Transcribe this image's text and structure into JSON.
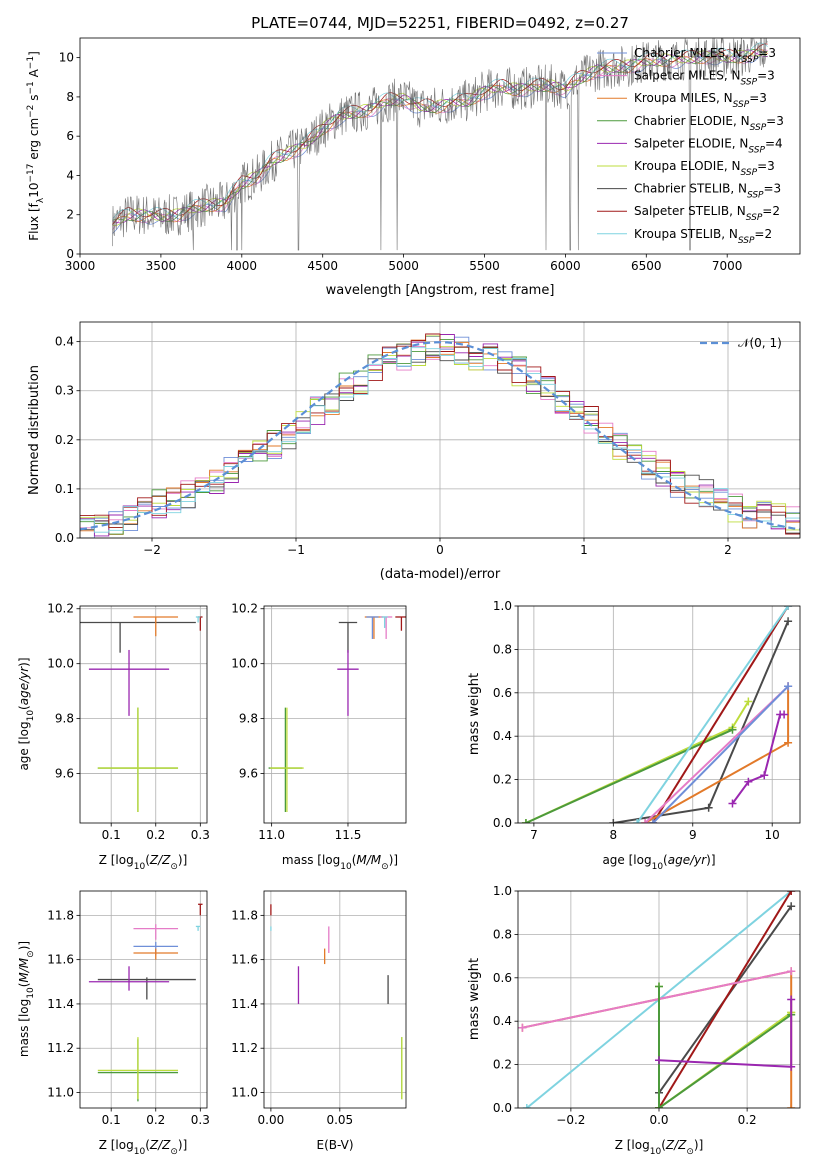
{
  "figure_title": "PLATE=0744, MJD=52251, FIBERID=0492, z=0.27",
  "colors": {
    "Chabrier MILES": "#6f8fd8",
    "Salpeter MILES": "#e57cc7",
    "Kroupa MILES": "#e27a2a",
    "Chabrier ELODIE": "#4c9a3c",
    "Salpeter ELODIE": "#9a27b0",
    "Kroupa ELODIE": "#bddc3c",
    "Chabrier STELIB": "#4a4a4a",
    "Salpeter STELIB": "#a01818",
    "Kroupa STELIB": "#7fd3e0"
  },
  "legend_models": [
    {
      "label": "Chabrier MILES, N",
      "sub": "SSP",
      "tail": "=3",
      "color_key": "Chabrier MILES"
    },
    {
      "label": "Salpeter MILES, N",
      "sub": "SSP",
      "tail": "=3",
      "color_key": "Salpeter MILES"
    },
    {
      "label": "Kroupa MILES, N",
      "sub": "SSP",
      "tail": "=3",
      "color_key": "Kroupa MILES"
    },
    {
      "label": "Chabrier ELODIE, N",
      "sub": "SSP",
      "tail": "=3",
      "color_key": "Chabrier ELODIE"
    },
    {
      "label": "Salpeter ELODIE, N",
      "sub": "SSP",
      "tail": "=4",
      "color_key": "Salpeter ELODIE"
    },
    {
      "label": "Kroupa ELODIE, N",
      "sub": "SSP",
      "tail": "=3",
      "color_key": "Kroupa ELODIE"
    },
    {
      "label": "Chabrier STELIB, N",
      "sub": "SSP",
      "tail": "=3",
      "color_key": "Chabrier STELIB"
    },
    {
      "label": "Salpeter STELIB, N",
      "sub": "SSP",
      "tail": "=2",
      "color_key": "Salpeter STELIB"
    },
    {
      "label": "Kroupa STELIB, N",
      "sub": "SSP",
      "tail": "=2",
      "color_key": "Kroupa STELIB"
    }
  ],
  "chart_data": [
    {
      "id": "spectrum",
      "type": "line",
      "xlabel": "wavelength [Angstrom, rest frame]",
      "ylabel_main": "Flux [f",
      "ylabel_sub": "λ",
      "ylabel_rest": "10",
      "ylabel_tail": " erg cm",
      "ylabel_tail2": " s",
      "ylabel_tail3": " A",
      "ylabel_sup1": "−17",
      "ylabel_sup2": "−2",
      "ylabel_sup3": "−1",
      "ylabel_sup4": "−1",
      "xlim": [
        3000,
        7450
      ],
      "ylim": [
        0,
        11
      ],
      "xticks": [
        3000,
        3500,
        4000,
        4500,
        5000,
        5500,
        6000,
        6500,
        7000
      ],
      "yticks": [
        0,
        2,
        4,
        6,
        8,
        10
      ],
      "grid": false,
      "legend_position": "upper right",
      "continuum": {
        "wavelength": [
          3200,
          3300,
          3400,
          3500,
          3600,
          3700,
          3800,
          3900,
          4000,
          4100,
          4200,
          4300,
          4400,
          4500,
          4600,
          4700,
          4800,
          4900,
          5000,
          5100,
          5200,
          5300,
          5400,
          5500,
          5600,
          5700,
          5800,
          5900,
          6000,
          6100,
          6200,
          6300,
          6400,
          6500,
          6600,
          6700,
          6800,
          6900,
          7000,
          7100,
          7200,
          7250
        ],
        "flux": [
          1.5,
          2.0,
          2.0,
          1.9,
          2.0,
          2.3,
          2.5,
          2.6,
          3.6,
          4.0,
          4.8,
          5.2,
          5.6,
          6.4,
          7.0,
          7.2,
          7.4,
          7.8,
          7.9,
          7.5,
          7.5,
          7.7,
          7.8,
          8.3,
          8.5,
          8.4,
          8.5,
          8.6,
          8.4,
          9.0,
          9.4,
          9.5,
          9.6,
          9.8,
          9.9,
          9.9,
          10.0,
          10.1,
          10.0,
          10.1,
          10.3,
          10.3
        ]
      }
    },
    {
      "id": "residuals",
      "type": "step",
      "xlabel": "(data-model)/error",
      "ylabel": "Normed distribution",
      "xlim": [
        -2.5,
        2.5
      ],
      "ylim": [
        0,
        0.44
      ],
      "xticks": [
        -2,
        -1,
        0,
        1,
        2
      ],
      "yticks": [
        0.0,
        0.1,
        0.2,
        0.3,
        0.4
      ],
      "grid": true,
      "legend_position": "upper right",
      "reference_label": "𝒩(0, 1)",
      "reference_color": "#5b8fd6",
      "bin_centers": [
        -2.45,
        -2.35,
        -2.25,
        -2.15,
        -2.05,
        -1.95,
        -1.85,
        -1.75,
        -1.65,
        -1.55,
        -1.45,
        -1.35,
        -1.25,
        -1.15,
        -1.05,
        -0.95,
        -0.85,
        -0.75,
        -0.65,
        -0.55,
        -0.45,
        -0.35,
        -0.25,
        -0.15,
        -0.05,
        0.05,
        0.15,
        0.25,
        0.35,
        0.45,
        0.55,
        0.65,
        0.75,
        0.85,
        0.95,
        1.05,
        1.15,
        1.25,
        1.35,
        1.45,
        1.55,
        1.65,
        1.75,
        1.85,
        1.95,
        2.05,
        2.15,
        2.25,
        2.35,
        2.45
      ],
      "base_density": [
        0.02,
        0.03,
        0.035,
        0.045,
        0.055,
        0.07,
        0.08,
        0.09,
        0.11,
        0.12,
        0.135,
        0.15,
        0.17,
        0.19,
        0.21,
        0.23,
        0.26,
        0.28,
        0.31,
        0.32,
        0.35,
        0.36,
        0.37,
        0.38,
        0.39,
        0.39,
        0.38,
        0.37,
        0.37,
        0.36,
        0.34,
        0.32,
        0.3,
        0.28,
        0.26,
        0.24,
        0.21,
        0.19,
        0.16,
        0.15,
        0.13,
        0.11,
        0.1,
        0.09,
        0.08,
        0.06,
        0.05,
        0.045,
        0.04,
        0.035
      ]
    },
    {
      "id": "age_vs_Z",
      "type": "errorbar",
      "xlabel": "Z [log",
      "xlabel_sub": "10",
      "xlabel_tail": "(Z/Z",
      "xlabel_sym": "⊙",
      "xlabel_end": ")]",
      "ylabel": "age  [log",
      "ylabel_sub": "10",
      "ylabel_tail": "(age/yr)]",
      "xlim": [
        0.03,
        0.315
      ],
      "ylim": [
        9.42,
        10.21
      ],
      "xticks": [
        0.1,
        0.2,
        0.3
      ],
      "yticks": [
        9.6,
        9.8,
        10.0,
        10.2
      ],
      "grid": true,
      "points": [
        {
          "model": "Chabrier STELIB",
          "x": 0.12,
          "xerr": 0.17,
          "y": 10.15,
          "yerr_lo": 0.11,
          "yerr_hi": 0.0
        },
        {
          "model": "Kroupa MILES",
          "x": 0.2,
          "xerr": 0.05,
          "y": 10.17,
          "yerr_lo": 0.07,
          "yerr_hi": 0.0
        },
        {
          "model": "Salpeter STELIB",
          "x": 0.3,
          "xerr": 0.005,
          "y": 10.17,
          "yerr_lo": 0.05,
          "yerr_hi": 0.0
        },
        {
          "model": "Kroupa STELIB",
          "x": 0.295,
          "xerr": 0.005,
          "y": 10.17,
          "yerr_lo": 0.02,
          "yerr_hi": 0.0
        },
        {
          "model": "Salpeter ELODIE",
          "x": 0.14,
          "xerr": 0.09,
          "y": 9.98,
          "yerr_lo": 0.17,
          "yerr_hi": 0.07
        },
        {
          "model": "Chabrier ELODIE",
          "x": 0.16,
          "xerr": 0.09,
          "y": 9.62,
          "yerr_lo": 0.16,
          "yerr_hi": 0.22
        },
        {
          "model": "Kroupa ELODIE",
          "x": 0.16,
          "xerr": 0.09,
          "y": 9.62,
          "yerr_lo": 0.16,
          "yerr_hi": 0.22
        }
      ]
    },
    {
      "id": "age_vs_mass",
      "type": "errorbar",
      "xlabel": "mass [log",
      "xlabel_sub": "10",
      "xlabel_tail": "(M/M",
      "xlabel_sym": "⊙",
      "xlabel_end": ")]",
      "xlim": [
        10.95,
        11.88
      ],
      "ylim": [
        9.42,
        10.21
      ],
      "xticks": [
        11.0,
        11.5
      ],
      "yticks": [
        9.6,
        9.8,
        10.0,
        10.2
      ],
      "grid": true,
      "points": [
        {
          "model": "Chabrier STELIB",
          "x": 11.5,
          "xerr": 0.06,
          "y": 10.15,
          "yerr_lo": 0.11,
          "yerr_hi": 0.0
        },
        {
          "model": "Kroupa MILES",
          "x": 11.67,
          "xerr": 0.06,
          "y": 10.17,
          "yerr_lo": 0.08,
          "yerr_hi": 0.0
        },
        {
          "model": "Chabrier MILES",
          "x": 11.66,
          "xerr": 0.04,
          "y": 10.17,
          "yerr_lo": 0.08,
          "yerr_hi": 0.0
        },
        {
          "model": "Salpeter MILES",
          "x": 11.75,
          "xerr": 0.04,
          "y": 10.17,
          "yerr_lo": 0.08,
          "yerr_hi": 0.0
        },
        {
          "model": "Salpeter STELIB",
          "x": 11.85,
          "xerr": 0.04,
          "y": 10.17,
          "yerr_lo": 0.05,
          "yerr_hi": 0.0
        },
        {
          "model": "Kroupa STELIB",
          "x": 11.74,
          "xerr": 0.02,
          "y": 10.17,
          "yerr_lo": 0.04,
          "yerr_hi": 0.0
        },
        {
          "model": "Salpeter ELODIE",
          "x": 11.5,
          "xerr": 0.07,
          "y": 9.98,
          "yerr_lo": 0.17,
          "yerr_hi": 0.07
        },
        {
          "model": "Chabrier ELODIE",
          "x": 11.09,
          "xerr": 0.11,
          "y": 9.62,
          "yerr_lo": 0.16,
          "yerr_hi": 0.22
        },
        {
          "model": "Kroupa ELODIE",
          "x": 11.1,
          "xerr": 0.11,
          "y": 9.62,
          "yerr_lo": 0.16,
          "yerr_hi": 0.22
        }
      ]
    },
    {
      "id": "massweight_vs_age",
      "type": "line",
      "xlabel": "age  [log",
      "xlabel_sub": "10",
      "xlabel_tail": "(age/yr)]",
      "ylabel": "mass weight",
      "xlim": [
        6.8,
        10.35
      ],
      "ylim": [
        0,
        1
      ],
      "xticks": [
        7,
        8,
        9,
        10
      ],
      "yticks": [
        0.0,
        0.2,
        0.4,
        0.6,
        0.8,
        1.0
      ],
      "grid": true,
      "series": [
        {
          "model": "Kroupa ELODIE",
          "x": [
            6.9,
            9.5,
            9.7
          ],
          "y": [
            0.0,
            0.44,
            0.56
          ]
        },
        {
          "model": "Chabrier ELODIE",
          "x": [
            6.9,
            9.5
          ],
          "y": [
            0.0,
            0.43
          ]
        },
        {
          "model": "Chabrier STELIB",
          "x": [
            8.0,
            9.2,
            10.2
          ],
          "y": [
            0.0,
            0.07,
            0.93
          ]
        },
        {
          "model": "Salpeter STELIB",
          "x": [
            8.5,
            10.2
          ],
          "y": [
            0.0,
            1.0
          ]
        },
        {
          "model": "Kroupa STELIB",
          "x": [
            8.3,
            10.2
          ],
          "y": [
            0.0,
            1.0
          ]
        },
        {
          "model": "Kroupa MILES",
          "x": [
            8.4,
            10.2,
            10.2
          ],
          "y": [
            0.0,
            0.37,
            0.63
          ]
        },
        {
          "model": "Salpeter MILES",
          "x": [
            8.4,
            10.2
          ],
          "y": [
            0.0,
            0.63
          ]
        },
        {
          "model": "Chabrier MILES",
          "x": [
            8.5,
            10.2
          ],
          "y": [
            0.0,
            0.63
          ]
        },
        {
          "model": "Salpeter ELODIE",
          "x": [
            9.5,
            9.7,
            9.9,
            10.1,
            10.15
          ],
          "y": [
            0.09,
            0.19,
            0.22,
            0.5,
            0.5
          ]
        }
      ]
    },
    {
      "id": "mass_vs_Z",
      "type": "errorbar",
      "xlabel": "Z [log",
      "xlabel_sub": "10",
      "xlabel_tail": "(Z/Z",
      "xlabel_sym": "⊙",
      "xlabel_end": ")]",
      "ylabel": "mass [log",
      "ylabel_sub": "10",
      "ylabel_tail": "(M/M",
      "ylabel_sym": "⊙",
      "ylabel_end": ")]",
      "xlim": [
        0.03,
        0.315
      ],
      "ylim": [
        10.93,
        11.91
      ],
      "xticks": [
        0.1,
        0.2,
        0.3
      ],
      "yticks": [
        11.0,
        11.2,
        11.4,
        11.6,
        11.8
      ],
      "grid": true,
      "points": [
        {
          "model": "Salpeter STELIB",
          "x": 0.3,
          "xerr": 0.005,
          "y": 11.85,
          "yerr_lo": 0.05,
          "yerr_hi": 0.0
        },
        {
          "model": "Kroupa STELIB",
          "x": 0.295,
          "xerr": 0.005,
          "y": 11.75,
          "yerr_lo": 0.02,
          "yerr_hi": 0.0
        },
        {
          "model": "Salpeter MILES",
          "x": 0.2,
          "xerr": 0.05,
          "y": 11.74,
          "yerr_lo": 0.05,
          "yerr_hi": 0.02
        },
        {
          "model": "Chabrier MILES",
          "x": 0.2,
          "xerr": 0.05,
          "y": 11.66,
          "yerr_lo": 0.04,
          "yerr_hi": 0.02
        },
        {
          "model": "Kroupa MILES",
          "x": 0.2,
          "xerr": 0.05,
          "y": 11.63,
          "yerr_lo": 0.03,
          "yerr_hi": 0.02
        },
        {
          "model": "Chabrier STELIB",
          "x": 0.18,
          "xerr": 0.11,
          "y": 11.51,
          "yerr_lo": 0.09,
          "yerr_hi": 0.01
        },
        {
          "model": "Salpeter ELODIE",
          "x": 0.14,
          "xerr": 0.09,
          "y": 11.5,
          "yerr_lo": 0.04,
          "yerr_hi": 0.07
        },
        {
          "model": "Chabrier ELODIE",
          "x": 0.16,
          "xerr": 0.09,
          "y": 11.09,
          "yerr_lo": 0.13,
          "yerr_hi": 0.15
        },
        {
          "model": "Kroupa ELODIE",
          "x": 0.16,
          "xerr": 0.09,
          "y": 11.1,
          "yerr_lo": 0.13,
          "yerr_hi": 0.15
        }
      ]
    },
    {
      "id": "mass_vs_EBV",
      "type": "errorbar",
      "xlabel": "E(B-V)",
      "xlim": [
        -0.005,
        0.098
      ],
      "ylim": [
        10.93,
        11.91
      ],
      "xticks": [
        0.0,
        0.05
      ],
      "xtick_labels": [
        "0.00",
        "0.05"
      ],
      "yticks": [
        11.0,
        11.2,
        11.4,
        11.6,
        11.8
      ],
      "grid": true,
      "points": [
        {
          "model": "Salpeter STELIB",
          "x": 0.0,
          "y": 11.85,
          "yerr_lo": 0.05,
          "yerr_hi": 0.0
        },
        {
          "model": "Kroupa STELIB",
          "x": 0.0,
          "y": 11.75,
          "yerr_lo": 0.02,
          "yerr_hi": 0.0
        },
        {
          "model": "Salpeter MILES",
          "x": 0.042,
          "y": 11.7,
          "yerr_lo": 0.07,
          "yerr_hi": 0.05
        },
        {
          "model": "Kroupa MILES",
          "x": 0.039,
          "y": 11.63,
          "yerr_lo": 0.05,
          "yerr_hi": 0.02
        },
        {
          "model": "Chabrier STELIB",
          "x": 0.085,
          "y": 11.47,
          "yerr_lo": 0.07,
          "yerr_hi": 0.06
        },
        {
          "model": "Salpeter ELODIE",
          "x": 0.02,
          "y": 11.47,
          "yerr_lo": 0.07,
          "yerr_hi": 0.1
        },
        {
          "model": "Chabrier ELODIE",
          "x": 0.095,
          "y": 11.1,
          "yerr_lo": 0.13,
          "yerr_hi": 0.15
        },
        {
          "model": "Kroupa ELODIE",
          "x": 0.095,
          "y": 11.1,
          "yerr_lo": 0.13,
          "yerr_hi": 0.15
        }
      ]
    },
    {
      "id": "massweight_vs_Z",
      "type": "line",
      "xlabel": "Z [log",
      "xlabel_sub": "10",
      "xlabel_tail": "(Z/Z",
      "xlabel_sym": "⊙",
      "xlabel_end": ")]",
      "ylabel": "mass weight",
      "xlim": [
        -0.32,
        0.32
      ],
      "ylim": [
        0,
        1
      ],
      "xticks": [
        -0.2,
        0.0,
        0.2
      ],
      "xtick_labels": [
        "−0.2",
        "0.0",
        "0.2"
      ],
      "yticks": [
        0.0,
        0.2,
        0.4,
        0.6,
        0.8,
        1.0
      ],
      "grid": true,
      "series": [
        {
          "model": "Kroupa STELIB",
          "x": [
            -0.3,
            0.3
          ],
          "y": [
            0.0,
            1.0
          ]
        },
        {
          "model": "Chabrier STELIB",
          "x": [
            0.0,
            0.0,
            0.3
          ],
          "y": [
            0.0,
            0.07,
            0.93
          ]
        },
        {
          "model": "Salpeter STELIB",
          "x": [
            0.0,
            0.3
          ],
          "y": [
            0.0,
            1.0
          ]
        },
        {
          "model": "Kroupa MILES",
          "x": [
            -0.31,
            0.3,
            0.3
          ],
          "y": [
            0.37,
            0.63,
            0.0
          ]
        },
        {
          "model": "Salpeter MILES",
          "x": [
            -0.31,
            0.3
          ],
          "y": [
            0.37,
            0.63
          ]
        },
        {
          "model": "Kroupa ELODIE",
          "x": [
            0.0,
            0.0,
            0.3,
            0.3
          ],
          "y": [
            0.56,
            0.0,
            0.44,
            0.44
          ]
        },
        {
          "model": "Chabrier ELODIE",
          "x": [
            0.0,
            0.0,
            0.3
          ],
          "y": [
            0.56,
            0.0,
            0.43
          ]
        },
        {
          "model": "Salpeter ELODIE",
          "x": [
            0.0,
            0.3,
            0.3
          ],
          "y": [
            0.22,
            0.19,
            0.5
          ]
        }
      ]
    }
  ]
}
